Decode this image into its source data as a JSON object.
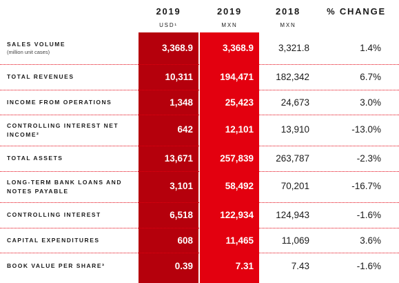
{
  "headers": {
    "usd": {
      "year": "2019",
      "unit": "USD¹"
    },
    "mxn": {
      "year": "2019",
      "unit": "MXN"
    },
    "y2018": {
      "year": "2018",
      "unit": "MXN"
    },
    "change": {
      "year": "% CHANGE",
      "unit": ""
    }
  },
  "rows": [
    {
      "label": "SALES VOLUME",
      "sublabel": "(million unit cases)",
      "usd": "3,368.9",
      "mxn": "3,368.9",
      "y2018": "3,321.8",
      "change": "1.4%"
    },
    {
      "label": "TOTAL REVENUES",
      "sublabel": "",
      "usd": "10,311",
      "mxn": "194,471",
      "y2018": "182,342",
      "change": "6.7%"
    },
    {
      "label": "INCOME FROM OPERATIONS",
      "sublabel": "",
      "usd": "1,348",
      "mxn": "25,423",
      "y2018": "24,673",
      "change": "3.0%"
    },
    {
      "label": "CONTROLLING INTEREST NET INCOME²",
      "sublabel": "",
      "usd": "642",
      "mxn": "12,101",
      "y2018": "13,910",
      "change": "-13.0%"
    },
    {
      "label": "TOTAL ASSETS",
      "sublabel": "",
      "usd": "13,671",
      "mxn": "257,839",
      "y2018": "263,787",
      "change": "-2.3%"
    },
    {
      "label": "LONG-TERM BANK LOANS AND NOTES PAYABLE",
      "sublabel": "",
      "usd": "3,101",
      "mxn": "58,492",
      "y2018": "70,201",
      "change": "-16.7%"
    },
    {
      "label": "CONTROLLING INTEREST",
      "sublabel": "",
      "usd": "6,518",
      "mxn": "122,934",
      "y2018": "124,943",
      "change": "-1.6%"
    },
    {
      "label": "CAPITAL EXPENDITURES",
      "sublabel": "",
      "usd": "608",
      "mxn": "11,465",
      "y2018": "11,069",
      "change": "3.6%"
    },
    {
      "label": "BOOK VALUE PER SHARE³",
      "sublabel": "",
      "usd": "0.39",
      "mxn": "7.31",
      "y2018": "7.43",
      "change": "-1.6%"
    }
  ],
  "colors": {
    "usd_column": "#b5000c",
    "mxn_column": "#e3000f",
    "divider": "#e3000f"
  }
}
